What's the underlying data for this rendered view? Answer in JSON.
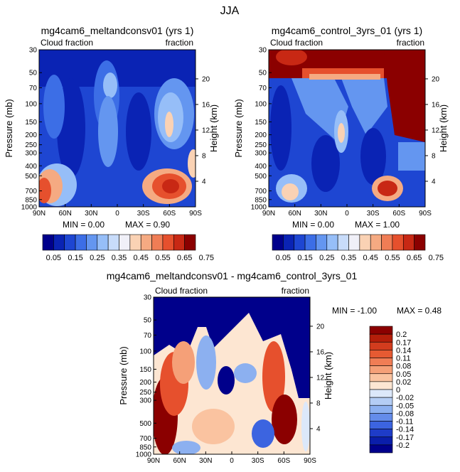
{
  "chart_data": [
    {
      "type": "heatmap",
      "title": "mg4cam6_meltandconsv01 (yrs 1)",
      "corner_left": "Cloud fraction",
      "corner_right": "fraction",
      "xlabel": "",
      "ylabel": "Pressure (mb)",
      "ylabel_right": "Height (km)",
      "x_ticks": [
        "90N",
        "60N",
        "30N",
        "0",
        "30S",
        "60S",
        "90S"
      ],
      "y_ticks": [
        "30",
        "50",
        "70",
        "100",
        "150",
        "200",
        "250",
        "300",
        "400",
        "500",
        "700",
        "850",
        "1000"
      ],
      "height_ticks": [
        "4",
        "8",
        "12",
        "16",
        "20"
      ],
      "min_text": "MIN =   0.00",
      "max_text": "MAX =   0.90",
      "min": 0.0,
      "max": 0.9
    },
    {
      "type": "heatmap",
      "title": "mg4cam6_control_3yrs_01 (yrs 1)",
      "corner_left": "Cloud fraction",
      "corner_right": "fraction",
      "xlabel": "",
      "ylabel": "Pressure (mb)",
      "ylabel_right": "Height (km)",
      "x_ticks": [
        "90N",
        "60N",
        "30N",
        "0",
        "30S",
        "60S",
        "90S"
      ],
      "y_ticks": [
        "30",
        "50",
        "70",
        "100",
        "150",
        "200",
        "250",
        "300",
        "400",
        "500",
        "700",
        "850",
        "1000"
      ],
      "height_ticks": [
        "4",
        "8",
        "12",
        "16",
        "20"
      ],
      "min_text": "MIN =   0.00",
      "max_text": "MAX =   1.00",
      "min": 0.0,
      "max": 1.0
    },
    {
      "type": "heatmap",
      "title": "mg4cam6_meltandconsv01 - mg4cam6_control_3yrs_01",
      "corner_left": "Cloud fraction",
      "corner_right": "fraction",
      "xlabel": "",
      "ylabel": "Pressure (mb)",
      "ylabel_right": "Height (km)",
      "x_ticks": [
        "90N",
        "60N",
        "30N",
        "0",
        "30S",
        "60S",
        "90S"
      ],
      "y_ticks": [
        "30",
        "50",
        "70",
        "100",
        "150",
        "200",
        "250",
        "300",
        "500",
        "700",
        "850",
        "1000"
      ],
      "height_ticks": [
        "4",
        "8",
        "12",
        "16",
        "20"
      ],
      "min_text": "MIN =  -1.00",
      "max_text": "MAX =   0.48",
      "min": -1.0,
      "max": 0.48
    }
  ],
  "figure_title": "JJA",
  "colorbar_top": {
    "labels": [
      "0.05",
      "0.15",
      "0.25",
      "0.35",
      "0.45",
      "0.55",
      "0.65",
      "0.75"
    ],
    "colors": [
      "#00008b",
      "#0a23b4",
      "#1e46d2",
      "#3c6ee6",
      "#6496f0",
      "#96bef8",
      "#c8dcfa",
      "#f0f0f8",
      "#fad2b4",
      "#f5aa82",
      "#f07d55",
      "#e6502d",
      "#c82814",
      "#8b0000"
    ]
  },
  "colorbar_diff": {
    "labels": [
      "0.2",
      "0.17",
      "0.14",
      "0.11",
      "0.08",
      "0.05",
      "0.02",
      "0",
      "-0.02",
      "-0.05",
      "-0.08",
      "-0.11",
      "-0.14",
      "-0.17",
      "-0.2"
    ],
    "colors": [
      "#8b0000",
      "#b41e0a",
      "#d23c1e",
      "#e65a32",
      "#f07d55",
      "#f5a078",
      "#fac3a0",
      "#fde6d2",
      "#dce8fa",
      "#b4cdf5",
      "#8cb0f0",
      "#648cea",
      "#3c64e0",
      "#1e3cc8",
      "#0a1eaa",
      "#00008b"
    ]
  }
}
